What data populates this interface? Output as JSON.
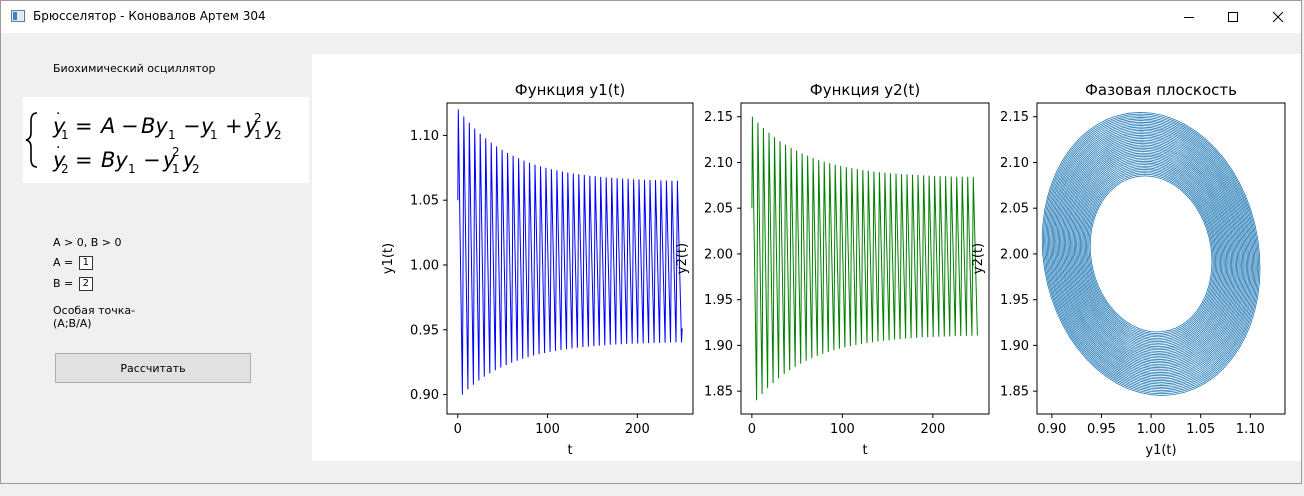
{
  "window": {
    "title": "Брюсселятор - Коновалов Артем 304",
    "minimize_label": "minimize",
    "maximize_label": "maximize",
    "close_label": "close"
  },
  "left_panel": {
    "heading": "Биохимический осциллятор",
    "formula": {
      "line1_lhs": "ẏ",
      "line1_rhs": "= A − By",
      "line2_rhs": "= By",
      "subscript1": "1",
      "subscript2": "2"
    },
    "condition": "A > 0, B > 0",
    "a_label": "A =",
    "a_value": "1",
    "b_label": "B =",
    "b_value": "2",
    "special_point_line1": "Особая точка-",
    "special_point_line2": "(A;B/A)",
    "calculate_button": "Рассчитать"
  },
  "colors": {
    "y1_line": "#0000ff",
    "y2_line": "#008000",
    "phase_line": "#1f77b4"
  },
  "chart_data": [
    {
      "type": "line",
      "title": "Функция y1(t)",
      "xlabel": "t",
      "ylabel": "y1(t)",
      "xlim": [
        -12,
        262
      ],
      "ylim": [
        0.885,
        1.125
      ],
      "xticks": [
        0,
        100,
        200
      ],
      "yticks": [
        "0.90",
        "0.95",
        "1.00",
        "1.05",
        "1.10"
      ],
      "series": [
        {
          "color": "#0000ff",
          "t_range": [
            0,
            250
          ],
          "start": 1.05,
          "first_max": 1.12,
          "first_min": 0.9,
          "final_max": 1.064,
          "final_min": 0.941,
          "final_value": 0.951,
          "period_approx": 6.1
        }
      ]
    },
    {
      "type": "line",
      "title": "Функция y2(t)",
      "xlabel": "t",
      "ylabel": "y2(t)",
      "xlim": [
        -12,
        262
      ],
      "ylim": [
        1.825,
        2.165
      ],
      "xticks": [
        0,
        100,
        200
      ],
      "yticks": [
        "1.85",
        "1.90",
        "1.95",
        "2.00",
        "2.05",
        "2.10",
        "2.15"
      ],
      "series": [
        {
          "color": "#008000",
          "t_range": [
            0,
            250
          ],
          "start": 2.05,
          "first_max": 2.15,
          "first_min": 1.84,
          "final_max": 2.083,
          "final_min": 1.912,
          "period_approx": 6.1
        }
      ]
    },
    {
      "type": "line",
      "title": "Фазовая плоскость",
      "xlabel": "y1(t)",
      "ylabel": "y2(t)",
      "xlim": [
        0.885,
        1.135
      ],
      "ylim": [
        1.825,
        2.165
      ],
      "xticks": [
        "0.90",
        "0.95",
        "1.00",
        "1.05",
        "1.10"
      ],
      "yticks": [
        "1.85",
        "1.90",
        "1.95",
        "2.00",
        "2.05",
        "2.10",
        "2.15"
      ],
      "series": [
        {
          "color": "#1f77b4",
          "center": [
            1.0,
            2.0
          ],
          "outer_y1_range": [
            0.9,
            1.12
          ],
          "outer_y2_range": [
            1.84,
            2.15
          ],
          "inner_y1_range": [
            0.941,
            1.064
          ],
          "inner_y2_range": [
            1.912,
            2.083
          ]
        }
      ]
    }
  ]
}
